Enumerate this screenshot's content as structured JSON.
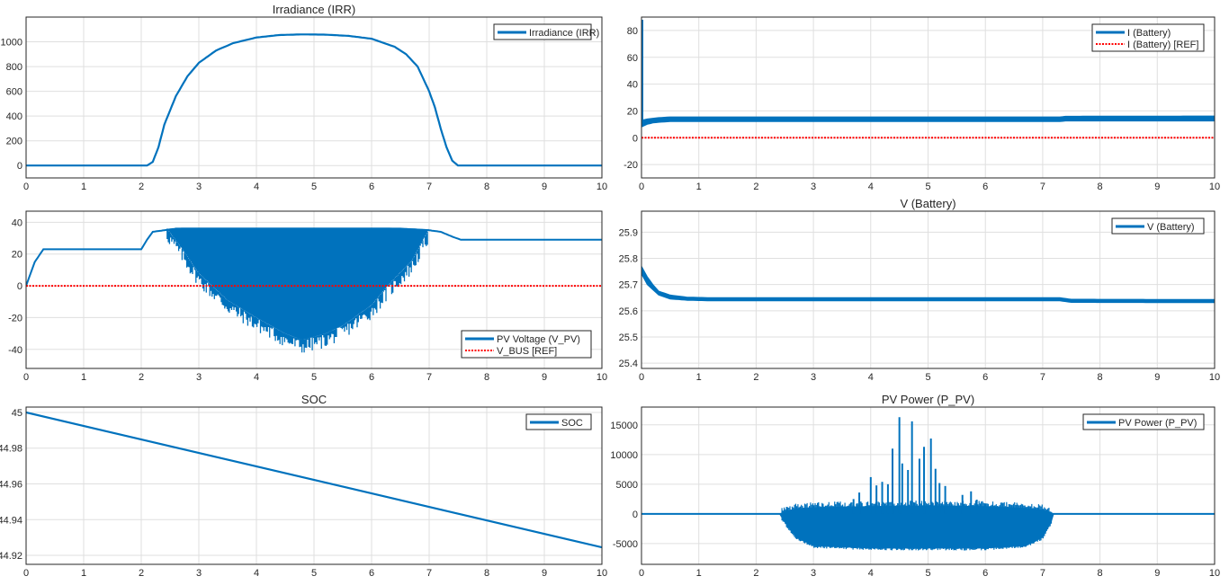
{
  "chart_data": [
    {
      "type": "line",
      "title": "Irradiance (IRR)",
      "xlim": [
        0,
        10
      ],
      "ylim": [
        -100,
        1200
      ],
      "xticks": [
        "0",
        "1",
        "2",
        "3",
        "4",
        "5",
        "6",
        "7",
        "8",
        "9",
        "10"
      ],
      "yticks": [
        {
          "v": 0,
          "t": "0"
        },
        {
          "v": 200,
          "t": "200"
        },
        {
          "v": 400,
          "t": "400"
        },
        {
          "v": 600,
          "t": "600"
        },
        {
          "v": 800,
          "t": "800"
        },
        {
          "v": 1000,
          "t": "1000"
        }
      ],
      "grid": true,
      "legend_position": "top-right",
      "series": [
        {
          "name": "Irradiance (IRR)",
          "color": "#0072BD",
          "style": "solid",
          "kind": "smooth",
          "x": [
            0,
            2.0,
            2.1,
            2.2,
            2.3,
            2.4,
            2.6,
            2.8,
            3.0,
            3.3,
            3.6,
            4.0,
            4.4,
            4.8,
            5.2,
            5.6,
            6.0,
            6.4,
            6.6,
            6.8,
            7.0,
            7.1,
            7.2,
            7.3,
            7.4,
            7.5,
            7.6,
            10
          ],
          "y": [
            0,
            0,
            0,
            30,
            150,
            330,
            560,
            720,
            830,
            930,
            990,
            1035,
            1055,
            1060,
            1058,
            1048,
            1025,
            960,
            900,
            800,
            600,
            470,
            300,
            150,
            40,
            0,
            0,
            0
          ]
        }
      ]
    },
    {
      "type": "line",
      "title": "",
      "xlim": [
        0,
        10
      ],
      "ylim": [
        -30,
        90
      ],
      "xticks": [
        "0",
        "1",
        "2",
        "3",
        "4",
        "5",
        "6",
        "7",
        "8",
        "9",
        "10"
      ],
      "yticks": [
        {
          "v": -20,
          "t": "-20"
        },
        {
          "v": 0,
          "t": "0"
        },
        {
          "v": 20,
          "t": "20"
        },
        {
          "v": 40,
          "t": "40"
        },
        {
          "v": 60,
          "t": "60"
        },
        {
          "v": 80,
          "t": "80"
        }
      ],
      "grid": true,
      "legend_position": "top-right",
      "series": [
        {
          "name": "I (Battery)",
          "color": "#0072BD",
          "style": "solid",
          "kind": "band",
          "x": [
            0,
            0.1,
            0.2,
            0.3,
            0.5,
            7.3,
            7.4,
            10
          ],
          "upper": [
            13,
            14,
            14.5,
            15,
            15.5,
            15.5,
            16,
            16.2
          ],
          "lower": [
            8,
            10,
            11,
            11.5,
            12,
            12,
            12.5,
            12.5
          ],
          "spike": {
            "x": 0.02,
            "y": 88
          }
        },
        {
          "name": "I (Battery) [REF]",
          "color": "#FF0000",
          "style": "dotted",
          "kind": "line",
          "x": [
            0,
            10
          ],
          "y": [
            0,
            0
          ]
        }
      ]
    },
    {
      "type": "line",
      "title": "",
      "xlim": [
        0,
        10
      ],
      "ylim": [
        -52,
        47
      ],
      "xticks": [
        "0",
        "1",
        "2",
        "3",
        "4",
        "5",
        "6",
        "7",
        "8",
        "9",
        "10"
      ],
      "yticks": [
        {
          "v": -40,
          "t": "-40"
        },
        {
          "v": -20,
          "t": "-20"
        },
        {
          "v": 0,
          "t": "0"
        },
        {
          "v": 20,
          "t": "20"
        },
        {
          "v": 40,
          "t": "40"
        }
      ],
      "grid": true,
      "legend_position": "bottom-right",
      "series": [
        {
          "name": "PV Voltage (V_PV)",
          "color": "#0072BD",
          "style": "solid",
          "kind": "oscillation",
          "x": [
            0,
            0.15,
            0.3,
            2.0,
            2.1,
            2.2,
            2.4,
            2.6,
            3.0,
            4.0,
            5.0,
            6.0,
            6.5,
            7.0,
            7.2,
            7.4,
            7.55,
            10
          ],
          "y": [
            0,
            15,
            23,
            23,
            29,
            34,
            35,
            36,
            36,
            36,
            36,
            36,
            36,
            35,
            34,
            31,
            29,
            29
          ],
          "osc_x": [
            2.45,
            2.7,
            3.0,
            3.5,
            4.0,
            4.5,
            4.8,
            5.2,
            5.5,
            6.0,
            6.3,
            6.7,
            7.0
          ],
          "osc_min": [
            30,
            18,
            2,
            -15,
            -26,
            -36,
            -40,
            -36,
            -31,
            -18,
            -5,
            10,
            30
          ]
        },
        {
          "name": "V_BUS [REF]",
          "color": "#FF0000",
          "style": "dotted",
          "kind": "line",
          "x": [
            0,
            10
          ],
          "y": [
            0,
            0
          ]
        }
      ]
    },
    {
      "type": "line",
      "title": "V (Battery)",
      "xlim": [
        0,
        10
      ],
      "ylim": [
        25.38,
        25.98
      ],
      "xticks": [
        "0",
        "1",
        "2",
        "3",
        "4",
        "5",
        "6",
        "7",
        "8",
        "9",
        "10"
      ],
      "yticks": [
        {
          "v": 25.4,
          "t": "25.4"
        },
        {
          "v": 25.5,
          "t": "25.5"
        },
        {
          "v": 25.6,
          "t": "25.6"
        },
        {
          "v": 25.7,
          "t": "25.7"
        },
        {
          "v": 25.8,
          "t": "25.8"
        },
        {
          "v": 25.9,
          "t": "25.9"
        }
      ],
      "grid": true,
      "legend_position": "top-right",
      "series": [
        {
          "name": "V (Battery)",
          "color": "#0072BD",
          "style": "solid",
          "kind": "band",
          "x": [
            0,
            0.1,
            0.2,
            0.3,
            0.5,
            0.8,
            1.2,
            7.3,
            7.5,
            10
          ],
          "upper": [
            25.77,
            25.73,
            25.7,
            25.675,
            25.66,
            25.652,
            25.65,
            25.65,
            25.644,
            25.643
          ],
          "lower": [
            25.74,
            25.7,
            25.68,
            25.66,
            25.645,
            25.64,
            25.638,
            25.638,
            25.632,
            25.631
          ]
        }
      ]
    },
    {
      "type": "line",
      "title": "SOC",
      "xlim": [
        0,
        10
      ],
      "ylim": [
        44.915,
        45.003
      ],
      "xticks": [
        "0",
        "1",
        "2",
        "3",
        "4",
        "5",
        "6",
        "7",
        "8",
        "9",
        "10"
      ],
      "yticks": [
        {
          "v": 44.92,
          "t": "44.92"
        },
        {
          "v": 44.94,
          "t": "44.94"
        },
        {
          "v": 44.96,
          "t": "44.96"
        },
        {
          "v": 44.98,
          "t": "44.98"
        },
        {
          "v": 45,
          "t": "45"
        }
      ],
      "grid": true,
      "legend_position": "top-right",
      "series": [
        {
          "name": "SOC",
          "color": "#0072BD",
          "style": "solid",
          "kind": "line",
          "x": [
            0,
            10
          ],
          "y": [
            45.0,
            44.9245
          ]
        }
      ]
    },
    {
      "type": "line",
      "title": "PV Power (P_PV)",
      "xlim": [
        0,
        10
      ],
      "ylim": [
        -8500,
        18000
      ],
      "xticks": [
        "0",
        "1",
        "2",
        "3",
        "4",
        "5",
        "6",
        "7",
        "8",
        "9",
        "10"
      ],
      "yticks": [
        {
          "v": -5000,
          "t": "-5000"
        },
        {
          "v": 0,
          "t": "0"
        },
        {
          "v": 5000,
          "t": "5000"
        },
        {
          "v": 10000,
          "t": "10000"
        },
        {
          "v": 15000,
          "t": "15000"
        }
      ],
      "grid": true,
      "legend_position": "top-right",
      "series": [
        {
          "name": "PV Power (P_PV)",
          "color": "#0072BD",
          "style": "solid",
          "kind": "oscillation",
          "x": [
            0,
            10
          ],
          "y": [
            0,
            0
          ],
          "band_x": [
            2.4,
            2.5,
            2.7,
            3.0,
            4.0,
            5.0,
            6.0,
            6.7,
            7.0,
            7.15,
            7.2
          ],
          "band_top": [
            0,
            500,
            900,
            1100,
            1300,
            1400,
            1300,
            1000,
            700,
            300,
            0
          ],
          "band_bot": [
            0,
            -1500,
            -4000,
            -5400,
            -5800,
            -5800,
            -5800,
            -5400,
            -4000,
            -1500,
            0
          ],
          "peaks": [
            [
              4.0,
              6200
            ],
            [
              4.2,
              5400
            ],
            [
              4.38,
              11000
            ],
            [
              4.5,
              16300
            ],
            [
              4.55,
              8500
            ],
            [
              4.65,
              7400
            ],
            [
              4.72,
              15600
            ],
            [
              4.85,
              9300
            ],
            [
              4.93,
              11300
            ],
            [
              5.05,
              12700
            ],
            [
              5.13,
              7600
            ],
            [
              5.2,
              5200
            ],
            [
              4.1,
              4800
            ],
            [
              4.3,
              5000
            ],
            [
              5.3,
              4700
            ],
            [
              5.6,
              3200
            ],
            [
              5.75,
              3800
            ],
            [
              3.8,
              3600
            ],
            [
              3.7,
              2500
            ],
            [
              5.85,
              2400
            ]
          ]
        }
      ]
    }
  ]
}
